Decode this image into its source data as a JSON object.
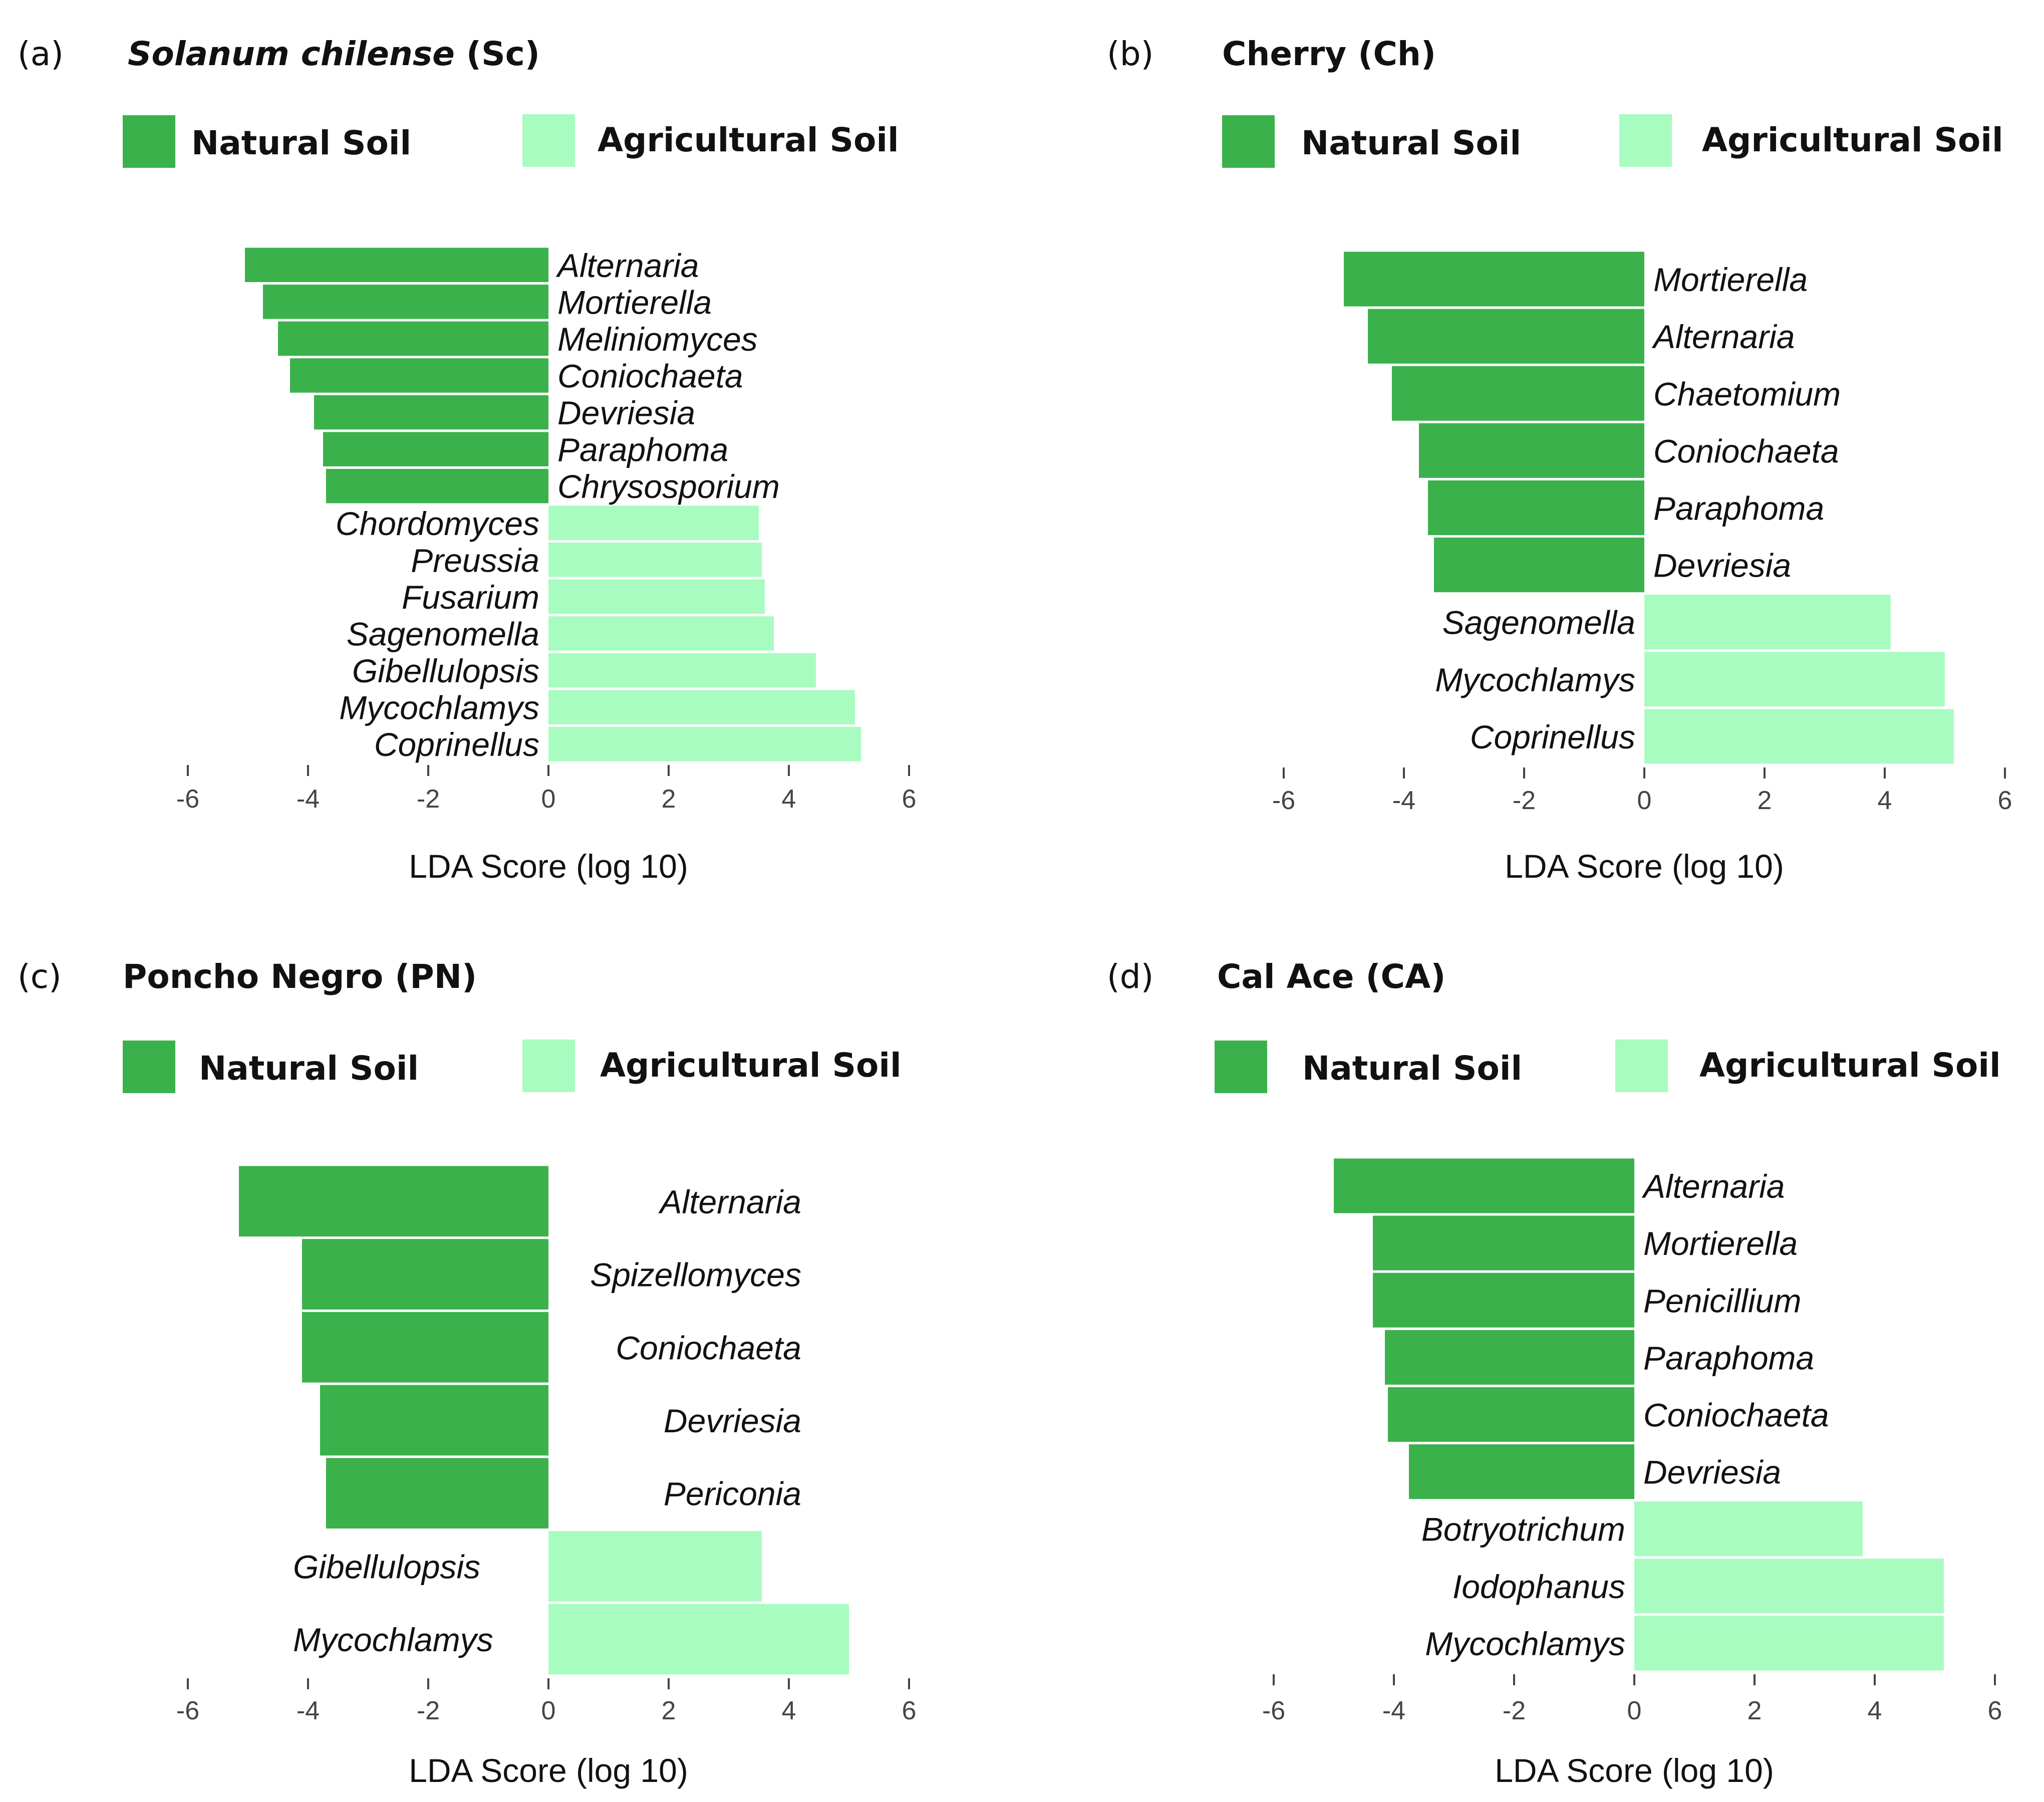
{
  "colors": {
    "natural": "#3bb14c",
    "agricultural": "#a8fcc0"
  },
  "chart_data": [
    {
      "type": "bar",
      "orientation": "horizontal",
      "panel": "(a)",
      "title_italic": "Solanum chilense",
      "title_rest": " (Sc)",
      "legend": [
        "Natural Soil",
        "Agricultural Soil"
      ],
      "xlabel": "LDA Score (log 10)",
      "xlim": [
        -6,
        6
      ],
      "xticks": [
        -6,
        -4,
        -2,
        0,
        2,
        4,
        6
      ],
      "bars": [
        {
          "label": "Alternaria",
          "value": -5.05,
          "group": "natural"
        },
        {
          "label": "Mortierella",
          "value": -4.75,
          "group": "natural"
        },
        {
          "label": "Meliniomyces",
          "value": -4.5,
          "group": "natural"
        },
        {
          "label": "Coniochaeta",
          "value": -4.3,
          "group": "natural"
        },
        {
          "label": "Devriesia",
          "value": -3.9,
          "group": "natural"
        },
        {
          "label": "Paraphoma",
          "value": -3.75,
          "group": "natural"
        },
        {
          "label": "Chrysosporium",
          "value": -3.7,
          "group": "natural"
        },
        {
          "label": "Chordomyces",
          "value": 3.5,
          "group": "agricultural"
        },
        {
          "label": "Preussia",
          "value": 3.55,
          "group": "agricultural"
        },
        {
          "label": "Fusarium",
          "value": 3.6,
          "group": "agricultural"
        },
        {
          "label": "Sagenomella",
          "value": 3.75,
          "group": "agricultural"
        },
        {
          "label": "Gibellulopsis",
          "value": 4.45,
          "group": "agricultural"
        },
        {
          "label": "Mycochlamys",
          "value": 5.1,
          "group": "agricultural"
        },
        {
          "label": "Coprinellus",
          "value": 5.2,
          "group": "agricultural"
        }
      ]
    },
    {
      "type": "bar",
      "orientation": "horizontal",
      "panel": "(b)",
      "title_italic": "",
      "title_rest": "Cherry (Ch)",
      "legend": [
        "Natural Soil",
        "Agricultural Soil"
      ],
      "xlabel": "LDA Score (log 10)",
      "xlim": [
        -6,
        6
      ],
      "xticks": [
        -6,
        -4,
        -2,
        0,
        2,
        4,
        6
      ],
      "bars": [
        {
          "label": "Mortierella",
          "value": -5.0,
          "group": "natural"
        },
        {
          "label": "Alternaria",
          "value": -4.6,
          "group": "natural"
        },
        {
          "label": "Chaetomium",
          "value": -4.2,
          "group": "natural"
        },
        {
          "label": "Coniochaeta",
          "value": -3.75,
          "group": "natural"
        },
        {
          "label": "Paraphoma",
          "value": -3.6,
          "group": "natural"
        },
        {
          "label": "Devriesia",
          "value": -3.5,
          "group": "natural"
        },
        {
          "label": "Sagenomella",
          "value": 4.1,
          "group": "agricultural"
        },
        {
          "label": "Mycochlamys",
          "value": 5.0,
          "group": "agricultural"
        },
        {
          "label": "Coprinellus",
          "value": 5.15,
          "group": "agricultural"
        }
      ]
    },
    {
      "type": "bar",
      "orientation": "horizontal",
      "panel": "(c)",
      "title_italic": "",
      "title_rest": "Poncho Negro (PN)",
      "legend": [
        "Natural Soil",
        "Agricultural Soil"
      ],
      "xlabel": "LDA Score (log 10)",
      "xlim": [
        -6,
        6
      ],
      "xticks": [
        -6,
        -4,
        -2,
        0,
        2,
        4,
        6
      ],
      "bars": [
        {
          "label": "Alternaria",
          "value": -5.15,
          "group": "natural"
        },
        {
          "label": "Spizellomyces",
          "value": -4.1,
          "group": "natural"
        },
        {
          "label": "Coniochaeta",
          "value": -4.1,
          "group": "natural"
        },
        {
          "label": "Devriesia",
          "value": -3.8,
          "group": "natural"
        },
        {
          "label": "Periconia",
          "value": -3.7,
          "group": "natural"
        },
        {
          "label": "Gibellulopsis",
          "value": 3.55,
          "group": "agricultural"
        },
        {
          "label": "Mycochlamys",
          "value": 5.0,
          "group": "agricultural"
        }
      ]
    },
    {
      "type": "bar",
      "orientation": "horizontal",
      "panel": "(d)",
      "title_italic": "",
      "title_rest": "Cal Ace (CA)",
      "legend": [
        "Natural Soil",
        "Agricultural Soil"
      ],
      "xlabel": "LDA Score (log 10)",
      "xlim": [
        -6,
        6
      ],
      "xticks": [
        -6,
        -4,
        -2,
        0,
        2,
        4,
        6
      ],
      "bars": [
        {
          "label": "Alternaria",
          "value": -5.0,
          "group": "natural"
        },
        {
          "label": "Mortierella",
          "value": -4.35,
          "group": "natural"
        },
        {
          "label": "Penicillium",
          "value": -4.35,
          "group": "natural"
        },
        {
          "label": "Paraphoma",
          "value": -4.15,
          "group": "natural"
        },
        {
          "label": "Coniochaeta",
          "value": -4.1,
          "group": "natural"
        },
        {
          "label": "Devriesia",
          "value": -3.75,
          "group": "natural"
        },
        {
          "label": "Botryotrichum",
          "value": 3.8,
          "group": "agricultural"
        },
        {
          "label": "Iodophanus",
          "value": 5.15,
          "group": "agricultural"
        },
        {
          "label": "Mycochlamys",
          "value": 5.15,
          "group": "agricultural"
        }
      ]
    }
  ]
}
